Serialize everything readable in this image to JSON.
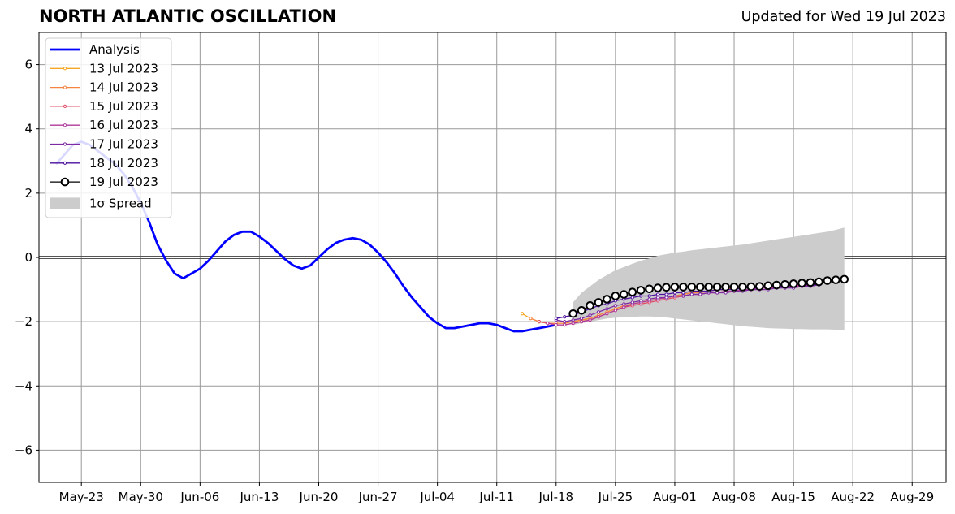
{
  "chart_data": {
    "type": "line",
    "title": "NORTH ATLANTIC OSCILLATION",
    "subtitle": "Updated for Wed 19 Jul 2023",
    "xlabel": "",
    "ylabel": "",
    "xlim": [
      "2023-05-18",
      "2023-09-02"
    ],
    "ylim": [
      -7,
      7
    ],
    "grid": true,
    "legend_position": "top-left",
    "x_ticks": [
      "2023-05-23",
      "2023-05-30",
      "2023-06-06",
      "2023-06-13",
      "2023-06-20",
      "2023-06-27",
      "2023-07-04",
      "2023-07-11",
      "2023-07-18",
      "2023-07-25",
      "2023-08-01",
      "2023-08-08",
      "2023-08-15",
      "2023-08-22",
      "2023-08-29"
    ],
    "x_tick_labels": [
      "May-23",
      "May-30",
      "Jun-06",
      "Jun-13",
      "Jun-20",
      "Jun-27",
      "Jul-04",
      "Jul-11",
      "Jul-18",
      "Jul-25",
      "Aug-01",
      "Aug-08",
      "Aug-15",
      "Aug-22",
      "Aug-29"
    ],
    "y_ticks": [
      -6,
      -4,
      -2,
      0,
      2,
      4,
      6
    ],
    "y_tick_labels": [
      "−6",
      "−4",
      "−2",
      "0",
      "2",
      "4",
      "6"
    ],
    "series": [
      {
        "name": "Analysis",
        "color": "#0000ff",
        "start": "2023-05-20",
        "values": [
          2.9,
          3.2,
          3.5,
          3.6,
          3.5,
          3.3,
          3.1,
          2.9,
          2.6,
          2.2,
          1.7,
          1.1,
          0.4,
          -0.1,
          -0.5,
          -0.65,
          -0.5,
          -0.35,
          -0.1,
          0.2,
          0.5,
          0.7,
          0.8,
          0.8,
          0.65,
          0.45,
          0.2,
          -0.05,
          -0.25,
          -0.35,
          -0.25,
          0.0,
          0.25,
          0.45,
          0.55,
          0.6,
          0.55,
          0.4,
          0.15,
          -0.15,
          -0.5,
          -0.9,
          -1.25,
          -1.55,
          -1.85,
          -2.05,
          -2.2,
          -2.2,
          -2.15,
          -2.1,
          -2.05,
          -2.05,
          -2.1,
          -2.2,
          -2.3,
          -2.3,
          -2.25,
          -2.2,
          -2.15,
          -2.1
        ]
      },
      {
        "name": "13 Jul 2023",
        "color": "#f5a623",
        "start": "2023-07-14",
        "values": [
          -1.75,
          -1.9,
          -2.0,
          -2.05,
          -2.05,
          -2.05,
          -2.0,
          -1.95,
          -1.9,
          -1.8,
          -1.7,
          -1.6,
          -1.5,
          -1.45,
          -1.4,
          -1.35,
          -1.3,
          -1.25,
          -1.2,
          -1.15,
          -1.1,
          -1.05,
          -1.05,
          -1.0,
          -1.0,
          -0.95,
          -0.95,
          -0.9,
          -0.9,
          -0.9,
          -0.85,
          -0.85,
          -0.85,
          -0.85,
          -0.8,
          -0.8
        ]
      },
      {
        "name": "14 Jul 2023",
        "color": "#f58442",
        "start": "2023-07-15",
        "values": [
          -1.9,
          -2.0,
          -2.05,
          -2.05,
          -2.05,
          -2.0,
          -1.95,
          -1.9,
          -1.8,
          -1.7,
          -1.6,
          -1.5,
          -1.45,
          -1.4,
          -1.35,
          -1.3,
          -1.25,
          -1.2,
          -1.15,
          -1.1,
          -1.1,
          -1.05,
          -1.0,
          -1.0,
          -0.95,
          -0.95,
          -0.9,
          -0.9,
          -0.9,
          -0.85,
          -0.85,
          -0.85,
          -0.85,
          -0.85,
          -0.8
        ]
      },
      {
        "name": "15 Jul 2023",
        "color": "#e0506a",
        "start": "2023-07-16",
        "values": [
          -2.0,
          -2.05,
          -2.1,
          -2.1,
          -2.05,
          -2.0,
          -1.95,
          -1.85,
          -1.75,
          -1.65,
          -1.55,
          -1.5,
          -1.45,
          -1.4,
          -1.35,
          -1.3,
          -1.25,
          -1.2,
          -1.15,
          -1.15,
          -1.1,
          -1.1,
          -1.05,
          -1.05,
          -1.0,
          -1.0,
          -0.95,
          -0.95,
          -0.9,
          -0.9,
          -0.9,
          -0.85,
          -0.85,
          -0.85
        ]
      },
      {
        "name": "16 Jul 2023",
        "color": "#b03a9a",
        "start": "2023-07-17",
        "values": [
          -2.05,
          -2.1,
          -2.1,
          -2.05,
          -2.0,
          -1.95,
          -1.85,
          -1.75,
          -1.65,
          -1.55,
          -1.45,
          -1.4,
          -1.35,
          -1.3,
          -1.25,
          -1.2,
          -1.2,
          -1.15,
          -1.15,
          -1.1,
          -1.1,
          -1.05,
          -1.05,
          -1.0,
          -1.0,
          -0.95,
          -0.95,
          -0.95,
          -0.9,
          -0.9,
          -0.9,
          -0.85,
          -0.85
        ]
      },
      {
        "name": "17 Jul 2023",
        "color": "#7d2aa3",
        "start": "2023-07-18",
        "values": [
          -1.95,
          -2.0,
          -1.95,
          -1.9,
          -1.8,
          -1.7,
          -1.6,
          -1.5,
          -1.45,
          -1.4,
          -1.35,
          -1.3,
          -1.25,
          -1.25,
          -1.2,
          -1.2,
          -1.15,
          -1.15,
          -1.1,
          -1.1,
          -1.1,
          -1.05,
          -1.05,
          -1.0,
          -1.0,
          -1.0,
          -0.95,
          -0.95,
          -0.95,
          -0.9,
          -0.9,
          -0.85
        ]
      },
      {
        "name": "18 Jul 2023",
        "color": "#4b0f9e",
        "start": "2023-07-18",
        "values": [
          -1.9,
          -1.85,
          -1.8,
          -1.7,
          -1.6,
          -1.5,
          -1.45,
          -1.35,
          -1.3,
          -1.25,
          -1.2,
          -1.2,
          -1.15,
          -1.15,
          -1.1,
          -1.1,
          -1.05,
          -1.05,
          -1.05,
          -1.0,
          -1.0,
          -1.0,
          -0.95,
          -0.95,
          -0.95,
          -0.9,
          -0.9,
          -0.9,
          -0.85,
          -0.85,
          -0.85,
          -0.85
        ]
      },
      {
        "name": "19 Jul 2023",
        "color": "#000000",
        "start": "2023-07-20",
        "values": [
          -1.75,
          -1.65,
          -1.5,
          -1.4,
          -1.3,
          -1.2,
          -1.15,
          -1.08,
          -1.02,
          -0.98,
          -0.95,
          -0.93,
          -0.92,
          -0.92,
          -0.92,
          -0.92,
          -0.92,
          -0.92,
          -0.92,
          -0.92,
          -0.92,
          -0.91,
          -0.9,
          -0.88,
          -0.86,
          -0.84,
          -0.82,
          -0.8,
          -0.78,
          -0.76,
          -0.72,
          -0.7,
          -0.68
        ]
      }
    ],
    "spread": {
      "name": "1σ Spread",
      "color": "#cccccc",
      "start": "2023-07-20",
      "upper": [
        -1.4,
        -1.1,
        -0.9,
        -0.7,
        -0.55,
        -0.4,
        -0.3,
        -0.2,
        -0.1,
        -0.03,
        0.05,
        0.1,
        0.15,
        0.18,
        0.22,
        0.25,
        0.28,
        0.31,
        0.34,
        0.37,
        0.4,
        0.44,
        0.48,
        0.52,
        0.56,
        0.6,
        0.64,
        0.68,
        0.72,
        0.76,
        0.8,
        0.86,
        0.93
      ],
      "lower": [
        -2.1,
        -2.05,
        -2.0,
        -1.95,
        -1.9,
        -1.88,
        -1.86,
        -1.85,
        -1.84,
        -1.84,
        -1.85,
        -1.87,
        -1.9,
        -1.93,
        -1.96,
        -1.99,
        -2.02,
        -2.05,
        -2.08,
        -2.11,
        -2.14,
        -2.16,
        -2.18,
        -2.2,
        -2.21,
        -2.22,
        -2.23,
        -2.23,
        -2.24,
        -2.24,
        -2.24,
        -2.25,
        -2.25
      ]
    }
  }
}
